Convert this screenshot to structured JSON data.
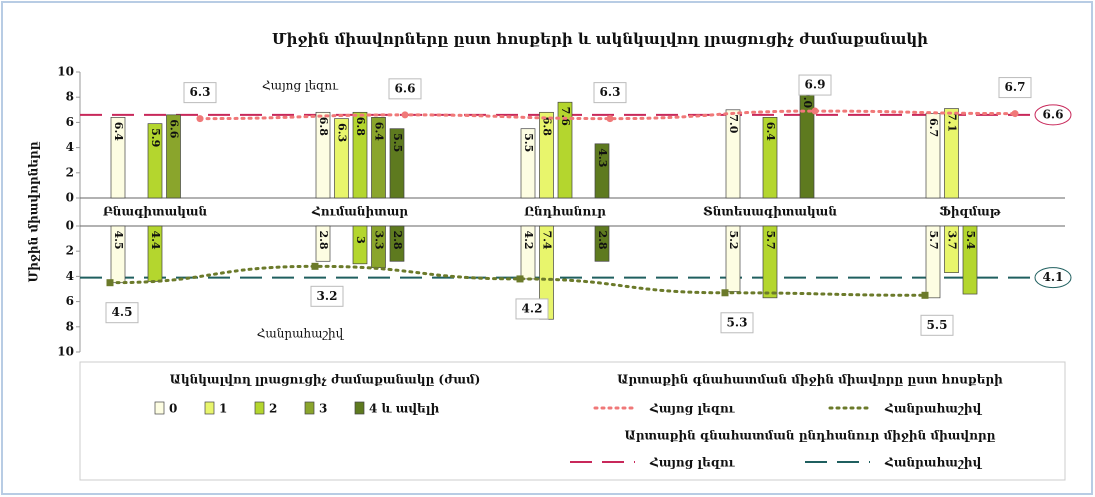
{
  "chart_data": {
    "type": "bar",
    "title": "Միջին միավորները ըստ հոսքերի և ակնկալվող լրացուցիչ ժամաքանակի",
    "y_label": "Միջին միավորները",
    "categories": [
      "Բնագիտական",
      "Հումանիտար",
      "Ընդհանուր",
      "Տնտեսագիտական",
      "Ֆիզմաթ"
    ],
    "panels": [
      "Հայոց լեզու",
      "Հանրահաշիվ"
    ],
    "ylim": [
      0,
      10
    ],
    "yticks": [
      0,
      2,
      4,
      6,
      8,
      10
    ],
    "legend_title": "Ակնկալվող լրացուցիչ ժամաքանակը (ժամ)",
    "series": [
      {
        "name": "0",
        "color": "#fdfde2",
        "values": [
          6.4,
          6.8,
          5.5,
          7,
          6.7
        ],
        "value_labels": [
          "6.4",
          "6.8",
          "5.5",
          "7.0",
          "6.7"
        ],
        "values_lower": [
          4.5,
          2.8,
          4.2,
          5.2,
          5.7
        ]
      },
      {
        "name": "1",
        "color": "#e8f56c",
        "values": [
          null,
          6.3,
          6.8,
          null,
          7.1
        ],
        "values_lower": [
          null,
          null,
          7.4,
          null,
          3.7
        ]
      },
      {
        "name": "2",
        "color": "#b4d62e",
        "values": [
          5.9,
          6.8,
          7.6,
          6.4,
          null
        ],
        "values_lower": [
          4.4,
          3,
          null,
          5.7,
          5.4
        ]
      },
      {
        "name": "3",
        "color": "#8aa52c",
        "values": [
          6.6,
          6.4,
          null,
          null,
          null
        ],
        "values_lower": [
          null,
          3.3,
          null,
          null,
          null
        ]
      },
      {
        "name": "4 և ավելի",
        "color": "#5e7a1f",
        "values": [
          null,
          5.5,
          4.3,
          9,
          null
        ],
        "value_labels": [
          null,
          "5.5",
          "4.3",
          "9.0",
          null
        ],
        "values_lower": [
          null,
          2.8,
          2.8,
          null,
          null
        ]
      }
    ],
    "avg_by_stream": {
      "title": "Արտաքին գնահատման միջին միավորը ըստ հոսքերի",
      "series": [
        {
          "name": "Հայոց լեզու",
          "color": "#f07878",
          "values": [
            6.3,
            6.6,
            6.3,
            6.9,
            6.7
          ]
        },
        {
          "name": "Հանրահաշիվ",
          "color": "#6b7a2a",
          "values": [
            4.5,
            3.2,
            4.2,
            5.3,
            5.5
          ]
        }
      ]
    },
    "overall_avg": {
      "title": "Արտաքին գնահատման ընդհանուր միջին միավորը",
      "series": [
        {
          "name": "Հայոց լեզու",
          "color": "#c8285a",
          "value": 6.6
        },
        {
          "name": "Հանրահաշիվ",
          "color": "#1f5f5f",
          "value": 4.1
        }
      ]
    }
  }
}
